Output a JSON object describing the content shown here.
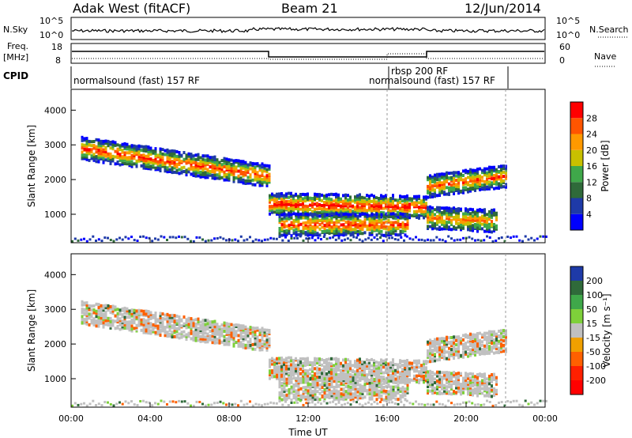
{
  "header": {
    "station": "Adak West (fitACF)",
    "beam": "Beam 21",
    "date": "12/Jun/2014"
  },
  "nsky_panel": {
    "left_label": "N.Sky",
    "right_label": "N.Search",
    "left_ticks": [
      "10^5",
      "10^0"
    ],
    "right_ticks": [
      "10^5",
      "10^0"
    ]
  },
  "freq_panel": {
    "left_label_1": "Freq.",
    "left_label_2": "[MHz]",
    "left_ticks": [
      "18",
      "8"
    ],
    "right_label": "Nave",
    "right_ticks": [
      "60",
      "0"
    ]
  },
  "cpid_panel": {
    "label": "CPID",
    "programs": [
      "normalsound (fast) 157 RF",
      "rbsp 200 RF",
      "normalsound (fast) 157 RF"
    ]
  },
  "xaxis": {
    "label": "Time UT",
    "ticks": [
      "00:00",
      "04:00",
      "08:00",
      "12:00",
      "16:00",
      "20:00",
      "00:00"
    ]
  },
  "power_panel": {
    "ylabel": "Slant Range [km]",
    "yticks": [
      "1000",
      "2000",
      "3000",
      "4000"
    ],
    "colorbar_label": "Power [dB]",
    "colorbar_ticks": [
      "4",
      "8",
      "12",
      "16",
      "20",
      "24",
      "28"
    ],
    "colors": [
      "#0000ff",
      "#1e3aa8",
      "#2f6a3a",
      "#3fa84a",
      "#c8c000",
      "#ff9900",
      "#ff5500",
      "#ff0000"
    ]
  },
  "velocity_panel": {
    "ylabel": "Slant Range [km]",
    "yticks": [
      "1000",
      "2000",
      "3000",
      "4000"
    ],
    "colorbar_label": "Velocity [m s⁻¹]",
    "colorbar_ticks": [
      "200",
      "100",
      "50",
      "15",
      "-15",
      "-50",
      "-100",
      "-200"
    ],
    "colors": [
      "#1e3aa8",
      "#2f6a3a",
      "#3fa84a",
      "#7ed03a",
      "#c0c0c0",
      "#f0a000",
      "#ff6000",
      "#ff2000",
      "#ff0000"
    ]
  },
  "chart_data": [
    {
      "type": "heatmap",
      "title": "Power",
      "xlabel": "Time UT",
      "ylabel": "Slant Range [km]",
      "xlim": [
        "00:00",
        "24:00"
      ],
      "ylim": [
        180,
        4600
      ],
      "colorbar": {
        "label": "Power [dB]",
        "range": [
          0,
          32
        ]
      },
      "bands": [
        {
          "from_h": 0.5,
          "to_h": 10.0,
          "range_start_km": 2900,
          "range_end_km": 2100,
          "peak_db": 26
        },
        {
          "from_h": 10.0,
          "to_h": 18.0,
          "range_start_km": 1300,
          "range_end_km": 1200,
          "peak_db": 28
        },
        {
          "from_h": 10.5,
          "to_h": 17.0,
          "range_start_km": 700,
          "range_end_km": 700,
          "peak_db": 26
        },
        {
          "from_h": 18.0,
          "to_h": 22.0,
          "range_start_km": 1800,
          "range_end_km": 2100,
          "peak_db": 24
        },
        {
          "from_h": 18.0,
          "to_h": 21.5,
          "range_start_km": 900,
          "range_end_km": 800,
          "peak_db": 22
        }
      ]
    },
    {
      "type": "heatmap",
      "title": "Velocity",
      "xlabel": "Time UT",
      "ylabel": "Slant Range [km]",
      "xlim": [
        "00:00",
        "24:00"
      ],
      "ylim": [
        180,
        4600
      ],
      "colorbar": {
        "label": "Velocity [m s⁻¹]",
        "range": [
          -200,
          200
        ]
      },
      "dominant_value": "-15 to 15 (ground scatter, grey)"
    }
  ]
}
